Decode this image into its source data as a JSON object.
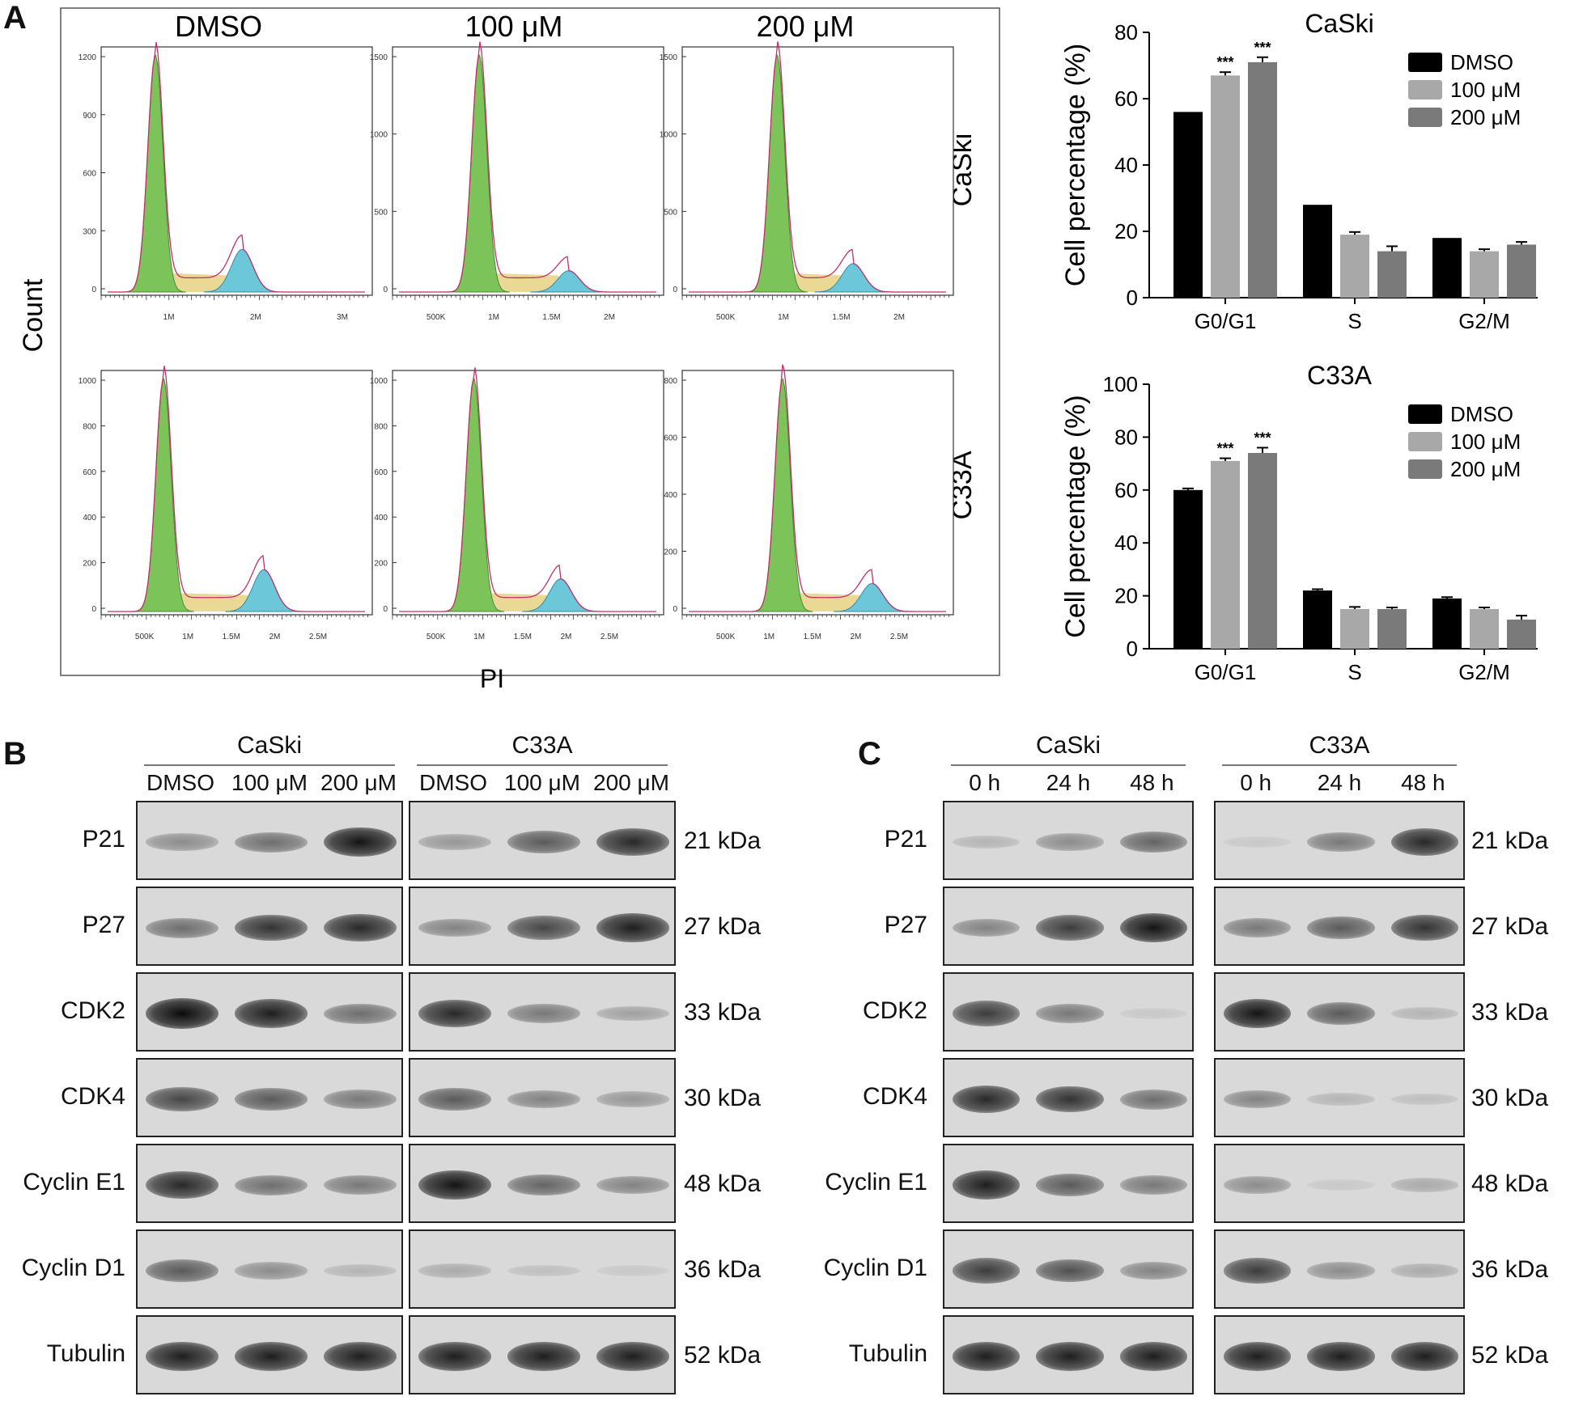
{
  "panel_labels": {
    "a": "A",
    "b": "B",
    "c": "C"
  },
  "histograms": {
    "conditions": [
      "DMSO",
      "100 μM",
      "200 μM"
    ],
    "cell_lines": [
      "CaSki",
      "C33A"
    ],
    "y_axis_label": "Count",
    "x_axis_label": "PI",
    "rows": [
      {
        "cell_line": "CaSki",
        "plots": [
          {
            "yticks": [
              "1200",
              "900",
              "600",
              "300",
              "0"
            ],
            "xticks": [
              "1M",
              "2M",
              "3M"
            ]
          },
          {
            "yticks": [
              "1500",
              "1000",
              "500",
              "0"
            ],
            "xticks": [
              "500K",
              "1M",
              "1.5M",
              "2M"
            ]
          },
          {
            "yticks": [
              "1500",
              "1000",
              "500",
              "0"
            ],
            "xticks": [
              "500K",
              "1M",
              "1.5M",
              "2M"
            ]
          }
        ]
      },
      {
        "cell_line": "C33A",
        "plots": [
          {
            "yticks": [
              "1000",
              "800",
              "600",
              "400",
              "200",
              "0"
            ],
            "xticks": [
              "500K",
              "1M",
              "1.5M",
              "2M",
              "2.5M"
            ]
          },
          {
            "yticks": [
              "1000",
              "800",
              "600",
              "400",
              "200",
              "0"
            ],
            "xticks": [
              "500K",
              "1M",
              "1.5M",
              "2M",
              "2.5M"
            ]
          },
          {
            "yticks": [
              "800",
              "600",
              "400",
              "200",
              "0"
            ],
            "xticks": [
              "500K",
              "1M",
              "1.5M",
              "2M",
              "2.5M"
            ]
          }
        ]
      }
    ]
  },
  "chart_data": [
    {
      "type": "bar",
      "title": "CaSki",
      "ylabel": "Cell percentage (%)",
      "categories": [
        "G0/G1",
        "S",
        "G2/M"
      ],
      "ylim": [
        0,
        80
      ],
      "yticks": [
        "0",
        "20",
        "40",
        "60",
        "80"
      ],
      "series": [
        {
          "name": "DMSO",
          "color": "#000000",
          "values": [
            56,
            28,
            18
          ],
          "errors": [
            0,
            0,
            0
          ]
        },
        {
          "name": "100 μM",
          "color": "#a8a8a8",
          "values": [
            67,
            19,
            14
          ],
          "errors": [
            1,
            0.8,
            0.6
          ]
        },
        {
          "name": "200 μM",
          "color": "#7a7a7a",
          "values": [
            71,
            14,
            16
          ],
          "errors": [
            1.5,
            1.5,
            0.8
          ]
        }
      ],
      "significance": [
        {
          "category": "G0/G1",
          "series": "100 μM",
          "label": "***"
        },
        {
          "category": "G0/G1",
          "series": "200 μM",
          "label": "***"
        }
      ],
      "legend_position": "top-right"
    },
    {
      "type": "bar",
      "title": "C33A",
      "ylabel": "Cell percentage (%)",
      "categories": [
        "G0/G1",
        "S",
        "G2/M"
      ],
      "ylim": [
        0,
        100
      ],
      "yticks": [
        "0",
        "20",
        "40",
        "60",
        "80",
        "100"
      ],
      "series": [
        {
          "name": "DMSO",
          "color": "#000000",
          "values": [
            60,
            22,
            19
          ],
          "errors": [
            0.6,
            0.5,
            0.5
          ]
        },
        {
          "name": "100 μM",
          "color": "#a8a8a8",
          "values": [
            71,
            15,
            15
          ],
          "errors": [
            1,
            0.8,
            0.6
          ]
        },
        {
          "name": "200 μM",
          "color": "#7a7a7a",
          "values": [
            74,
            15,
            11
          ],
          "errors": [
            2,
            0.6,
            1.5
          ]
        }
      ],
      "significance": [
        {
          "category": "G0/G1",
          "series": "100 μM",
          "label": "***"
        },
        {
          "category": "G0/G1",
          "series": "200 μM",
          "label": "***"
        }
      ],
      "legend_position": "top-right"
    }
  ],
  "panel_b": {
    "group_labels": [
      "CaSki",
      "C33A"
    ],
    "lane_labels": [
      "DMSO",
      "100 μM",
      "200 μM",
      "DMSO",
      "100 μM",
      "200 μM"
    ],
    "rows": [
      {
        "protein": "P21",
        "size": "21 kDa",
        "intensities": [
          0.35,
          0.5,
          0.95,
          0.3,
          0.6,
          0.85
        ]
      },
      {
        "protein": "P27",
        "size": "27 kDa",
        "intensities": [
          0.5,
          0.8,
          0.85,
          0.4,
          0.7,
          0.9
        ]
      },
      {
        "protein": "CDK2",
        "size": "33 kDa",
        "intensities": [
          1.0,
          0.9,
          0.5,
          0.85,
          0.45,
          0.25
        ]
      },
      {
        "protein": "CDK4",
        "size": "30 kDa",
        "intensities": [
          0.7,
          0.6,
          0.45,
          0.6,
          0.4,
          0.3
        ]
      },
      {
        "protein": "Cyclin E1",
        "size": "48 kDa",
        "intensities": [
          0.85,
          0.5,
          0.45,
          0.95,
          0.55,
          0.4
        ]
      },
      {
        "protein": "Cyclin D1",
        "size": "36 kDa",
        "intensities": [
          0.6,
          0.35,
          0.15,
          0.2,
          0.1,
          0.05
        ]
      },
      {
        "protein": "Tubulin",
        "size": "52 kDa",
        "intensities": [
          0.9,
          0.9,
          0.9,
          0.9,
          0.9,
          0.9
        ]
      }
    ]
  },
  "panel_c": {
    "group_labels": [
      "CaSki",
      "C33A"
    ],
    "lane_labels": [
      "0 h",
      "24 h",
      "48 h",
      "0 h",
      "24 h",
      "48 h"
    ],
    "rows": [
      {
        "protein": "P21",
        "size": "21 kDa",
        "intensities": [
          0.15,
          0.35,
          0.55,
          0.05,
          0.45,
          0.85
        ]
      },
      {
        "protein": "P27",
        "size": "27 kDa",
        "intensities": [
          0.4,
          0.75,
          0.95,
          0.45,
          0.6,
          0.8
        ]
      },
      {
        "protein": "CDK2",
        "size": "33 kDa",
        "intensities": [
          0.75,
          0.45,
          0.05,
          0.95,
          0.6,
          0.15
        ]
      },
      {
        "protein": "CDK4",
        "size": "30 kDa",
        "intensities": [
          0.85,
          0.8,
          0.5,
          0.4,
          0.15,
          0.1
        ]
      },
      {
        "protein": "Cyclin E1",
        "size": "48 kDa",
        "intensities": [
          0.9,
          0.6,
          0.45,
          0.35,
          0.05,
          0.2
        ]
      },
      {
        "protein": "Cyclin D1",
        "size": "36 kDa",
        "intensities": [
          0.75,
          0.65,
          0.4,
          0.75,
          0.35,
          0.2
        ]
      },
      {
        "protein": "Tubulin",
        "size": "52 kDa",
        "intensities": [
          0.9,
          0.9,
          0.9,
          0.9,
          0.9,
          0.9
        ]
      }
    ]
  }
}
